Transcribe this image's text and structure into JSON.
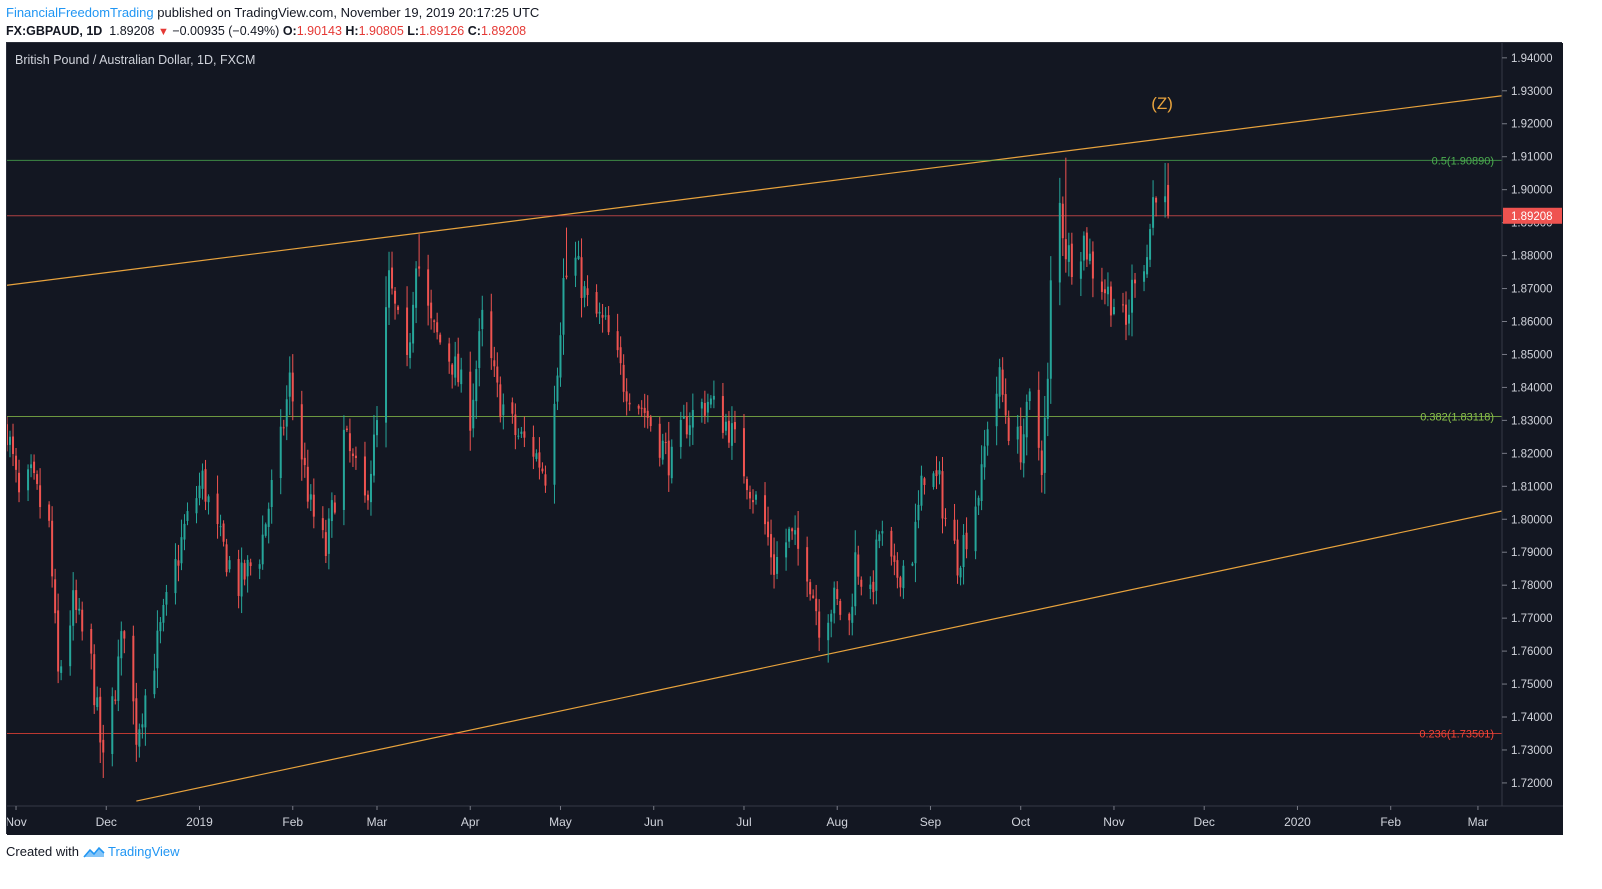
{
  "header": {
    "author": "FinancialFreedomTrading",
    "published_text": "published on TradingView.com, November 19, 2019 20:17:25 UTC",
    "symbol": "FX:GBPAUD, 1D",
    "last_price": "1.89208",
    "change": "−0.00935 (−0.49%)",
    "open_label": "O:",
    "open_value": "1.90143",
    "high_label": "H:",
    "high_value": "1.90805",
    "low_label": "L:",
    "low_value": "1.89126",
    "close_label": "C:",
    "close_value": "1.89208"
  },
  "colors": {
    "background": "#131722",
    "up": "#26a69a",
    "down": "#ef5350",
    "channel": "#e8a33d",
    "fib_half": "#4caf50",
    "fib_382": "#8bc34a",
    "fib_236": "#f44336",
    "price_line": "#ef5350",
    "brand": "#2196f3"
  },
  "chart_data": {
    "type": "candlestick",
    "title": "British Pound / Australian Dollar, 1D, FXCM",
    "ylim": [
      1.713,
      1.9445
    ],
    "y_ticks": [
      "1.72000",
      "1.73000",
      "1.74000",
      "1.75000",
      "1.76000",
      "1.77000",
      "1.78000",
      "1.79000",
      "1.80000",
      "1.81000",
      "1.82000",
      "1.83000",
      "1.84000",
      "1.85000",
      "1.86000",
      "1.87000",
      "1.88000",
      "1.89000",
      "1.90000",
      "1.91000",
      "1.92000",
      "1.93000",
      "1.94000"
    ],
    "x_range": [
      "2018-10-29",
      "2020-03-09"
    ],
    "x_ticks": [
      {
        "label": "Nov",
        "date": "2018-11-01"
      },
      {
        "label": "Dec",
        "date": "2018-12-01"
      },
      {
        "label": "2019",
        "date": "2019-01-01"
      },
      {
        "label": "Feb",
        "date": "2019-02-01"
      },
      {
        "label": "Mar",
        "date": "2019-03-01"
      },
      {
        "label": "Apr",
        "date": "2019-04-01"
      },
      {
        "label": "May",
        "date": "2019-05-01"
      },
      {
        "label": "Jun",
        "date": "2019-06-01"
      },
      {
        "label": "Jul",
        "date": "2019-07-01"
      },
      {
        "label": "Aug",
        "date": "2019-08-01"
      },
      {
        "label": "Sep",
        "date": "2019-09-01"
      },
      {
        "label": "Oct",
        "date": "2019-10-01"
      },
      {
        "label": "Nov",
        "date": "2019-11-01"
      },
      {
        "label": "Dec",
        "date": "2019-12-01"
      },
      {
        "label": "2020",
        "date": "2020-01-01"
      },
      {
        "label": "Feb",
        "date": "2020-02-01"
      },
      {
        "label": "Mar",
        "date": "2020-03-01"
      }
    ],
    "close_anchors": [
      [
        "2018-10-29",
        1.828
      ],
      [
        "2018-11-02",
        1.806
      ],
      [
        "2018-11-06",
        1.812
      ],
      [
        "2018-11-12",
        1.797
      ],
      [
        "2018-11-15",
        1.752
      ],
      [
        "2018-11-20",
        1.774
      ],
      [
        "2018-11-26",
        1.756
      ],
      [
        "2018-11-30",
        1.725
      ],
      [
        "2018-12-07",
        1.768
      ],
      [
        "2018-12-11",
        1.735
      ],
      [
        "2018-12-18",
        1.762
      ],
      [
        "2018-12-27",
        1.797
      ],
      [
        "2019-01-02",
        1.812
      ],
      [
        "2019-01-07",
        1.795
      ],
      [
        "2019-01-14",
        1.78
      ],
      [
        "2019-01-21",
        1.79
      ],
      [
        "2019-01-28",
        1.823
      ],
      [
        "2019-01-31",
        1.842
      ],
      [
        "2019-02-07",
        1.803
      ],
      [
        "2019-02-12",
        1.79
      ],
      [
        "2019-02-18",
        1.825
      ],
      [
        "2019-02-25",
        1.805
      ],
      [
        "2019-03-01",
        1.828
      ],
      [
        "2019-03-05",
        1.872
      ],
      [
        "2019-03-11",
        1.845
      ],
      [
        "2019-03-14",
        1.881
      ],
      [
        "2019-03-19",
        1.858
      ],
      [
        "2019-03-26",
        1.848
      ],
      [
        "2019-04-01",
        1.832
      ],
      [
        "2019-04-05",
        1.86
      ],
      [
        "2019-04-10",
        1.838
      ],
      [
        "2019-04-16",
        1.826
      ],
      [
        "2019-04-22",
        1.821
      ],
      [
        "2019-04-26",
        1.814
      ],
      [
        "2019-04-30",
        1.848
      ],
      [
        "2019-05-02",
        1.872
      ],
      [
        "2019-05-06",
        1.878
      ],
      [
        "2019-05-10",
        1.865
      ],
      [
        "2019-05-16",
        1.858
      ],
      [
        "2019-05-22",
        1.842
      ],
      [
        "2019-05-29",
        1.833
      ],
      [
        "2019-06-04",
        1.822
      ],
      [
        "2019-06-07",
        1.817
      ],
      [
        "2019-06-12",
        1.83
      ],
      [
        "2019-06-19",
        1.836
      ],
      [
        "2019-06-26",
        1.828
      ],
      [
        "2019-07-02",
        1.813
      ],
      [
        "2019-07-08",
        1.798
      ],
      [
        "2019-07-11",
        1.786
      ],
      [
        "2019-07-16",
        1.795
      ],
      [
        "2019-07-22",
        1.786
      ],
      [
        "2019-07-26",
        1.769
      ],
      [
        "2019-07-31",
        1.775
      ],
      [
        "2019-08-05",
        1.768
      ],
      [
        "2019-08-07",
        1.788
      ],
      [
        "2019-08-12",
        1.775
      ],
      [
        "2019-08-15",
        1.796
      ],
      [
        "2019-08-20",
        1.782
      ],
      [
        "2019-08-26",
        1.79
      ],
      [
        "2019-08-30",
        1.815
      ],
      [
        "2019-09-04",
        1.81
      ],
      [
        "2019-09-06",
        1.8
      ],
      [
        "2019-09-10",
        1.788
      ],
      [
        "2019-09-13",
        1.796
      ],
      [
        "2019-09-18",
        1.812
      ],
      [
        "2019-09-20",
        1.83
      ],
      [
        "2019-09-24",
        1.842
      ],
      [
        "2019-09-27",
        1.828
      ],
      [
        "2019-10-01",
        1.822
      ],
      [
        "2019-10-04",
        1.835
      ],
      [
        "2019-10-08",
        1.818
      ],
      [
        "2019-10-10",
        1.84
      ],
      [
        "2019-10-11",
        1.87
      ],
      [
        "2019-10-14",
        1.895
      ],
      [
        "2019-10-16",
        1.882
      ],
      [
        "2019-10-18",
        1.879
      ],
      [
        "2019-10-22",
        1.885
      ],
      [
        "2019-10-25",
        1.876
      ],
      [
        "2019-10-29",
        1.87
      ],
      [
        "2019-11-01",
        1.866
      ],
      [
        "2019-11-05",
        1.858
      ],
      [
        "2019-11-08",
        1.876
      ],
      [
        "2019-11-12",
        1.88
      ],
      [
        "2019-11-14",
        1.897
      ],
      [
        "2019-11-15",
        1.901
      ],
      [
        "2019-11-19",
        1.892
      ]
    ],
    "last_candle": {
      "date": "2019-11-19",
      "open": 1.90143,
      "high": 1.90805,
      "low": 1.89126,
      "close": 1.89208
    },
    "extremes": [
      {
        "date": "2018-11-30",
        "low": 1.7215
      },
      {
        "date": "2019-03-15",
        "high": 1.8865
      },
      {
        "date": "2019-05-03",
        "high": 1.8885
      },
      {
        "date": "2019-07-29",
        "low": 1.7565
      },
      {
        "date": "2019-10-16",
        "high": 1.9097
      },
      {
        "date": "2019-11-07",
        "low": 1.8555
      },
      {
        "date": "2019-11-18",
        "high": 1.9081
      }
    ],
    "channel_upper": {
      "from": [
        "2018-10-29",
        1.871
      ],
      "to": [
        "2020-03-09",
        1.9285
      ]
    },
    "channel_lower": {
      "from": [
        "2018-12-11",
        1.7145
      ],
      "to": [
        "2020-03-09",
        1.8025
      ]
    },
    "fib_levels": [
      {
        "label": "0.5(1.90890)",
        "value": 1.9089
      },
      {
        "label": "0.382(1.83118)",
        "value": 1.83118
      },
      {
        "label": "0.236(1.73501)",
        "value": 1.73501
      }
    ],
    "price_label": "1.89208",
    "price_value": 1.89208,
    "annotation": {
      "text": "(Z)",
      "date": "2019-11-17",
      "value": 1.9245
    }
  },
  "footer": {
    "created_with": "Created with",
    "brand": "TradingView"
  }
}
